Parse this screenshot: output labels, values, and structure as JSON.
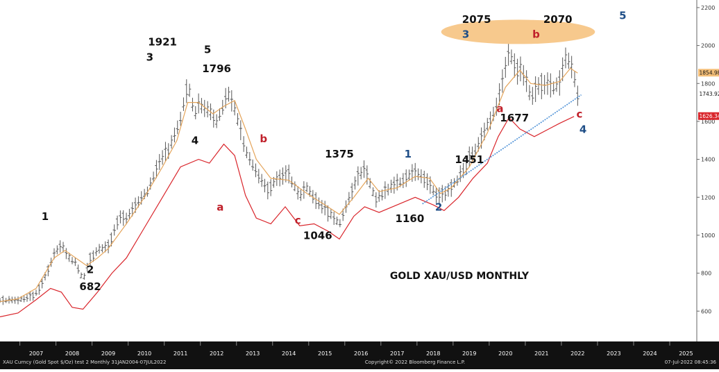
{
  "chart_data": {
    "type": "line",
    "title": "GOLD XAU/USD MONTHLY",
    "ylim": [
      440,
      2240
    ],
    "xlim": [
      2006.5,
      2025.8
    ],
    "y_ticks": [
      "600",
      "800",
      "1000",
      "1200",
      "1400",
      "1600",
      "1800",
      "2000",
      "2200"
    ],
    "x_ticks": [
      "2007",
      "2008",
      "2009",
      "2010",
      "2011",
      "2012",
      "2013",
      "2014",
      "2015",
      "2016",
      "2017",
      "2018",
      "2019",
      "2020",
      "2021",
      "2022",
      "2023",
      "2024",
      "2025"
    ],
    "last_value_labels": [
      {
        "text": "1854.98",
        "value": 1854.98,
        "color": "#f5c07a"
      },
      {
        "text": "1743.92",
        "value": 1743.92,
        "color": "#ffffff"
      },
      {
        "text": "1626.34",
        "value": 1626.34,
        "color": "#d9252b"
      }
    ],
    "footer_left": "XAU Curncy (Gold Spot   $/Oz) test 2  Monthly 31JAN2004-07JUL2022",
    "footer_center": "Copyright© 2022 Bloomberg Finance L.P.",
    "footer_right": "07-Jul-2022 08:45:36",
    "price_path": [
      [
        2006.5,
        660
      ],
      [
        2007.0,
        655
      ],
      [
        2007.4,
        680
      ],
      [
        2007.6,
        720
      ],
      [
        2007.8,
        800
      ],
      [
        2008.0,
        900
      ],
      [
        2008.2,
        950
      ],
      [
        2008.4,
        880
      ],
      [
        2008.6,
        860
      ],
      [
        2008.8,
        760
      ],
      [
        2009.0,
        880
      ],
      [
        2009.2,
        920
      ],
      [
        2009.5,
        940
      ],
      [
        2009.8,
        1100
      ],
      [
        2010.0,
        1090
      ],
      [
        2010.3,
        1170
      ],
      [
        2010.6,
        1240
      ],
      [
        2010.9,
        1380
      ],
      [
        2011.2,
        1460
      ],
      [
        2011.5,
        1620
      ],
      [
        2011.7,
        1800
      ],
      [
        2011.9,
        1640
      ],
      [
        2012.0,
        1690
      ],
      [
        2012.3,
        1650
      ],
      [
        2012.5,
        1600
      ],
      [
        2012.8,
        1750
      ],
      [
        2013.0,
        1670
      ],
      [
        2013.3,
        1450
      ],
      [
        2013.6,
        1340
      ],
      [
        2013.9,
        1240
      ],
      [
        2014.2,
        1300
      ],
      [
        2014.5,
        1320
      ],
      [
        2014.8,
        1200
      ],
      [
        2015.0,
        1250
      ],
      [
        2015.3,
        1180
      ],
      [
        2015.6,
        1120
      ],
      [
        2015.9,
        1060
      ],
      [
        2016.1,
        1160
      ],
      [
        2016.4,
        1300
      ],
      [
        2016.6,
        1350
      ],
      [
        2016.9,
        1190
      ],
      [
        2017.1,
        1220
      ],
      [
        2017.4,
        1260
      ],
      [
        2017.7,
        1300
      ],
      [
        2018.0,
        1330
      ],
      [
        2018.3,
        1300
      ],
      [
        2018.6,
        1210
      ],
      [
        2018.9,
        1230
      ],
      [
        2019.2,
        1300
      ],
      [
        2019.5,
        1410
      ],
      [
        2019.8,
        1490
      ],
      [
        2020.0,
        1580
      ],
      [
        2020.3,
        1700
      ],
      [
        2020.6,
        1970
      ],
      [
        2020.8,
        1880
      ],
      [
        2021.0,
        1850
      ],
      [
        2021.2,
        1730
      ],
      [
        2021.5,
        1800
      ],
      [
        2021.8,
        1780
      ],
      [
        2022.0,
        1800
      ],
      [
        2022.2,
        1950
      ],
      [
        2022.4,
        1840
      ],
      [
        2022.5,
        1745
      ]
    ],
    "ma_fast": [
      [
        2006.5,
        650
      ],
      [
        2007.0,
        665
      ],
      [
        2007.5,
        720
      ],
      [
        2008.0,
        880
      ],
      [
        2008.3,
        920
      ],
      [
        2008.6,
        880
      ],
      [
        2008.9,
        840
      ],
      [
        2009.2,
        880
      ],
      [
        2009.5,
        930
      ],
      [
        2010.0,
        1060
      ],
      [
        2010.5,
        1200
      ],
      [
        2011.0,
        1360
      ],
      [
        2011.4,
        1500
      ],
      [
        2011.7,
        1700
      ],
      [
        2012.0,
        1700
      ],
      [
        2012.4,
        1640
      ],
      [
        2012.7,
        1680
      ],
      [
        2013.0,
        1710
      ],
      [
        2013.3,
        1560
      ],
      [
        2013.6,
        1400
      ],
      [
        2014.0,
        1300
      ],
      [
        2014.5,
        1290
      ],
      [
        2015.0,
        1220
      ],
      [
        2015.5,
        1160
      ],
      [
        2015.9,
        1110
      ],
      [
        2016.3,
        1200
      ],
      [
        2016.7,
        1300
      ],
      [
        2017.0,
        1230
      ],
      [
        2017.5,
        1250
      ],
      [
        2018.0,
        1310
      ],
      [
        2018.4,
        1300
      ],
      [
        2018.7,
        1220
      ],
      [
        2019.0,
        1250
      ],
      [
        2019.5,
        1360
      ],
      [
        2020.0,
        1540
      ],
      [
        2020.5,
        1780
      ],
      [
        2020.9,
        1870
      ],
      [
        2021.2,
        1800
      ],
      [
        2021.6,
        1790
      ],
      [
        2022.0,
        1810
      ],
      [
        2022.3,
        1880
      ],
      [
        2022.5,
        1855
      ]
    ],
    "ma_lower": [
      [
        2006.5,
        570
      ],
      [
        2007.0,
        590
      ],
      [
        2007.5,
        660
      ],
      [
        2007.9,
        720
      ],
      [
        2008.2,
        700
      ],
      [
        2008.5,
        620
      ],
      [
        2008.8,
        610
      ],
      [
        2009.2,
        700
      ],
      [
        2009.6,
        800
      ],
      [
        2010.0,
        880
      ],
      [
        2010.5,
        1040
      ],
      [
        2011.0,
        1200
      ],
      [
        2011.5,
        1360
      ],
      [
        2012.0,
        1400
      ],
      [
        2012.3,
        1380
      ],
      [
        2012.7,
        1480
      ],
      [
        2013.0,
        1420
      ],
      [
        2013.3,
        1210
      ],
      [
        2013.6,
        1090
      ],
      [
        2014.0,
        1060
      ],
      [
        2014.4,
        1150
      ],
      [
        2014.8,
        1050
      ],
      [
        2015.2,
        1060
      ],
      [
        2015.6,
        1020
      ],
      [
        2015.9,
        980
      ],
      [
        2016.3,
        1100
      ],
      [
        2016.6,
        1150
      ],
      [
        2017.0,
        1120
      ],
      [
        2017.5,
        1160
      ],
      [
        2018.0,
        1200
      ],
      [
        2018.5,
        1160
      ],
      [
        2018.8,
        1130
      ],
      [
        2019.2,
        1200
      ],
      [
        2019.6,
        1300
      ],
      [
        2020.0,
        1380
      ],
      [
        2020.3,
        1520
      ],
      [
        2020.6,
        1620
      ],
      [
        2020.9,
        1560
      ],
      [
        2021.3,
        1520
      ],
      [
        2021.7,
        1560
      ],
      [
        2022.0,
        1590
      ],
      [
        2022.4,
        1626
      ]
    ],
    "trendline": [
      [
        2018.2,
        1165
      ],
      [
        2022.6,
        1740
      ]
    ],
    "annotations": [
      {
        "text": "1",
        "x": 2007.75,
        "y": 1080,
        "color": "#111111"
      },
      {
        "text": "2",
        "x": 2009.0,
        "y": 800,
        "color": "#111111"
      },
      {
        "text": "682",
        "x": 2009.0,
        "y": 710,
        "color": "#111111"
      },
      {
        "text": "1921",
        "x": 2011.0,
        "y": 2000,
        "color": "#111111"
      },
      {
        "text": "3",
        "x": 2010.65,
        "y": 1920,
        "color": "#111111"
      },
      {
        "text": "5",
        "x": 2012.25,
        "y": 1960,
        "color": "#111111"
      },
      {
        "text": "1796",
        "x": 2012.5,
        "y": 1860,
        "color": "#111111"
      },
      {
        "text": "4",
        "x": 2011.9,
        "y": 1480,
        "color": "#111111"
      },
      {
        "text": "b",
        "x": 2013.8,
        "y": 1490,
        "color": "#c0202a"
      },
      {
        "text": "a",
        "x": 2012.6,
        "y": 1130,
        "color": "#c0202a"
      },
      {
        "text": "c",
        "x": 2014.75,
        "y": 1060,
        "color": "#c0202a"
      },
      {
        "text": "1046",
        "x": 2015.3,
        "y": 980,
        "color": "#111111"
      },
      {
        "text": "1375",
        "x": 2015.9,
        "y": 1410,
        "color": "#111111"
      },
      {
        "text": "1",
        "x": 2017.8,
        "y": 1410,
        "color": "#1f4e87"
      },
      {
        "text": "1160",
        "x": 2017.85,
        "y": 1070,
        "color": "#111111"
      },
      {
        "text": "2",
        "x": 2018.65,
        "y": 1130,
        "color": "#1f4e87"
      },
      {
        "text": "1451",
        "x": 2019.5,
        "y": 1380,
        "color": "#111111"
      },
      {
        "text": "a",
        "x": 2020.35,
        "y": 1650,
        "color": "#c0202a"
      },
      {
        "text": "1677",
        "x": 2020.75,
        "y": 1600,
        "color": "#111111"
      },
      {
        "text": "2075",
        "x": 2019.7,
        "y": 2120,
        "color": "#111111"
      },
      {
        "text": "3",
        "x": 2019.4,
        "y": 2040,
        "color": "#1f4e87"
      },
      {
        "text": "b",
        "x": 2021.35,
        "y": 2040,
        "color": "#c0202a"
      },
      {
        "text": "2070",
        "x": 2021.95,
        "y": 2120,
        "color": "#111111"
      },
      {
        "text": "5",
        "x": 2023.75,
        "y": 2140,
        "color": "#1f4e87"
      },
      {
        "text": "c",
        "x": 2022.55,
        "y": 1620,
        "color": "#c0202a"
      },
      {
        "text": "4",
        "x": 2022.65,
        "y": 1540,
        "color": "#1f4e87"
      }
    ],
    "highlight_ellipse": {
      "cx": 2020.85,
      "cy": 2072,
      "rx": 2.13,
      "ry": 64,
      "color": "#f7c98d"
    }
  }
}
